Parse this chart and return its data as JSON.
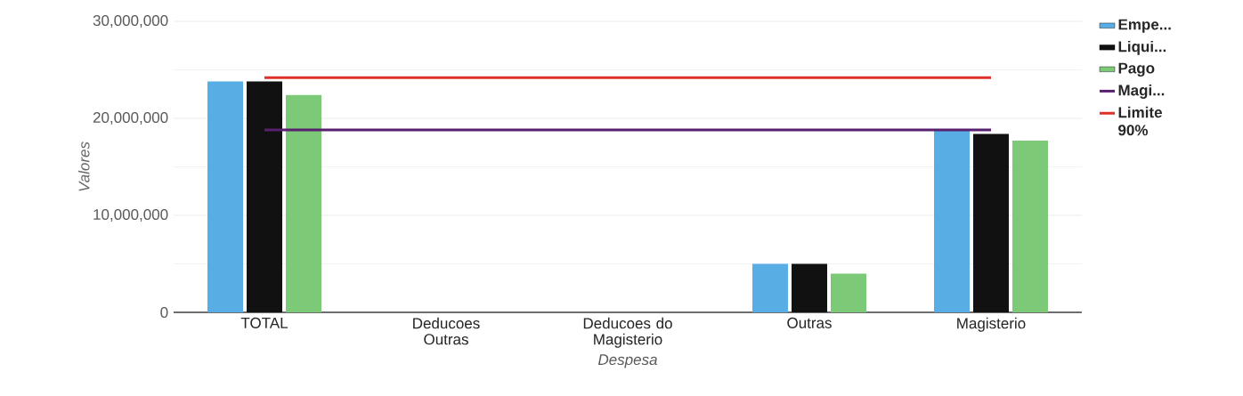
{
  "chart_data": {
    "type": "bar",
    "xlabel": "Despesa",
    "ylabel": "Valores",
    "categories": [
      "TOTAL",
      "Deducoes Outras",
      "Deducoes do Magisterio",
      "Outras",
      "Magisterio"
    ],
    "series": [
      {
        "name": "Empe...",
        "color": "#58ade4",
        "values": [
          23800000,
          0,
          0,
          5000000,
          18800000
        ]
      },
      {
        "name": "Liqui...",
        "color": "#111111",
        "values": [
          23800000,
          0,
          0,
          5000000,
          18400000
        ]
      },
      {
        "name": "Pago",
        "color": "#7cc978",
        "values": [
          22400000,
          0,
          0,
          4000000,
          17700000
        ]
      },
      {
        "name": "Magi...",
        "type": "line",
        "color": "#5a2070",
        "values": [
          18800000,
          18800000,
          18800000,
          18800000,
          18800000
        ]
      },
      {
        "name": "Limite 90%",
        "type": "line",
        "color": "#e0302a",
        "values": [
          24200000,
          24200000,
          24200000,
          24200000,
          24200000
        ]
      }
    ],
    "ylim": [
      0,
      30000000
    ],
    "yticks": [
      {
        "value": 0,
        "label": "0"
      },
      {
        "value": 10000000,
        "label": "10,000,000"
      },
      {
        "value": 20000000,
        "label": "20,000,000"
      },
      {
        "value": 30000000,
        "label": "30,000,000"
      }
    ],
    "grid": "y",
    "legend": "right"
  }
}
